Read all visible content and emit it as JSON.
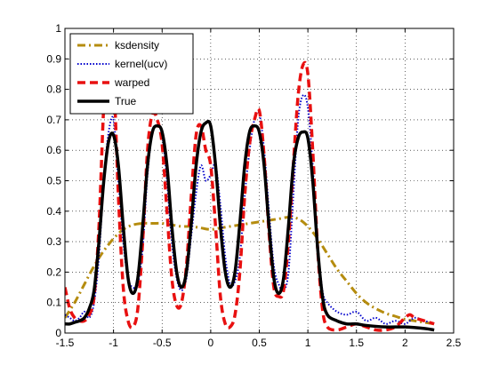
{
  "chart_data": {
    "type": "line",
    "title": "",
    "xlabel": "",
    "ylabel": "",
    "xlim": [
      -1.5,
      2.5
    ],
    "ylim": [
      0,
      1
    ],
    "xticks": [
      -1.5,
      -1,
      -0.5,
      0,
      0.5,
      1,
      1.5,
      2,
      2.5
    ],
    "yticks": [
      0,
      0.1,
      0.2,
      0.3,
      0.4,
      0.5,
      0.6,
      0.7,
      0.8,
      0.9,
      1
    ],
    "xtick_labels": [
      "-1.5",
      "-1",
      "-0.5",
      "0",
      "0.5",
      "1",
      "1.5",
      "2",
      "2.5"
    ],
    "ytick_labels": [
      "0",
      "0.1",
      "0.2",
      "0.3",
      "0.4",
      "0.5",
      "0.6",
      "0.7",
      "0.8",
      "0.9",
      "1"
    ],
    "grid": true,
    "legend_position": "top-left",
    "series": [
      {
        "name": "ksdensity",
        "color": "#b58c0f",
        "style": "dashdot",
        "x": [
          -1.5,
          -1.4,
          -1.3,
          -1.2,
          -1.1,
          -1.0,
          -0.9,
          -0.8,
          -0.7,
          -0.6,
          -0.5,
          -0.4,
          -0.3,
          -0.2,
          -0.1,
          0.0,
          0.1,
          0.2,
          0.3,
          0.4,
          0.5,
          0.6,
          0.7,
          0.8,
          0.9,
          1.0,
          1.1,
          1.2,
          1.3,
          1.4,
          1.5,
          1.6,
          1.7,
          1.8,
          1.9,
          2.0,
          2.1,
          2.2,
          2.3
        ],
        "y": [
          0.05,
          0.1,
          0.16,
          0.22,
          0.27,
          0.31,
          0.34,
          0.355,
          0.36,
          0.36,
          0.36,
          0.355,
          0.35,
          0.35,
          0.345,
          0.34,
          0.345,
          0.35,
          0.355,
          0.36,
          0.365,
          0.37,
          0.375,
          0.38,
          0.375,
          0.35,
          0.31,
          0.26,
          0.21,
          0.17,
          0.13,
          0.1,
          0.08,
          0.065,
          0.055,
          0.045,
          0.04,
          0.035,
          0.03
        ]
      },
      {
        "name": "kernel(ucv)",
        "color": "#0000cc",
        "style": "dotted",
        "x": [
          -1.5,
          -1.45,
          -1.4,
          -1.35,
          -1.3,
          -1.25,
          -1.2,
          -1.15,
          -1.1,
          -1.05,
          -1.0,
          -0.95,
          -0.9,
          -0.85,
          -0.8,
          -0.75,
          -0.7,
          -0.65,
          -0.6,
          -0.55,
          -0.5,
          -0.45,
          -0.4,
          -0.35,
          -0.3,
          -0.25,
          -0.2,
          -0.15,
          -0.1,
          -0.05,
          0.0,
          0.05,
          0.1,
          0.15,
          0.2,
          0.25,
          0.3,
          0.35,
          0.4,
          0.45,
          0.5,
          0.55,
          0.6,
          0.65,
          0.7,
          0.75,
          0.8,
          0.85,
          0.9,
          0.95,
          1.0,
          1.05,
          1.1,
          1.15,
          1.2,
          1.3,
          1.4,
          1.5,
          1.6,
          1.7,
          1.8,
          1.9,
          2.0,
          2.1,
          2.2,
          2.3
        ],
        "y": [
          0.06,
          0.05,
          0.04,
          0.05,
          0.07,
          0.05,
          0.1,
          0.25,
          0.5,
          0.66,
          0.7,
          0.5,
          0.3,
          0.18,
          0.15,
          0.16,
          0.28,
          0.52,
          0.66,
          0.68,
          0.65,
          0.5,
          0.3,
          0.18,
          0.14,
          0.18,
          0.32,
          0.46,
          0.55,
          0.5,
          0.52,
          0.55,
          0.42,
          0.25,
          0.16,
          0.17,
          0.25,
          0.45,
          0.6,
          0.7,
          0.72,
          0.6,
          0.4,
          0.22,
          0.16,
          0.14,
          0.2,
          0.45,
          0.7,
          0.78,
          0.74,
          0.55,
          0.3,
          0.14,
          0.1,
          0.07,
          0.06,
          0.07,
          0.04,
          0.05,
          0.03,
          0.04,
          0.03,
          0.05,
          0.04,
          0.03
        ]
      },
      {
        "name": "warped",
        "color": "#e81010",
        "style": "dashed",
        "x": [
          -1.5,
          -1.45,
          -1.4,
          -1.35,
          -1.3,
          -1.25,
          -1.2,
          -1.15,
          -1.1,
          -1.05,
          -1.0,
          -0.95,
          -0.9,
          -0.85,
          -0.8,
          -0.75,
          -0.7,
          -0.65,
          -0.6,
          -0.55,
          -0.5,
          -0.45,
          -0.4,
          -0.35,
          -0.3,
          -0.25,
          -0.2,
          -0.15,
          -0.1,
          -0.05,
          0.0,
          0.05,
          0.1,
          0.15,
          0.2,
          0.25,
          0.3,
          0.35,
          0.4,
          0.45,
          0.5,
          0.55,
          0.6,
          0.65,
          0.7,
          0.75,
          0.8,
          0.85,
          0.9,
          0.95,
          1.0,
          1.05,
          1.1,
          1.15,
          1.2,
          1.3,
          1.4,
          1.5,
          1.6,
          1.7,
          1.8,
          1.9,
          2.0,
          2.05,
          2.1,
          2.2,
          2.3
        ],
        "y": [
          0.15,
          0.08,
          0.05,
          0.04,
          0.04,
          0.06,
          0.12,
          0.35,
          0.75,
          0.98,
          0.85,
          0.45,
          0.15,
          0.04,
          0.02,
          0.08,
          0.3,
          0.6,
          0.72,
          0.7,
          0.62,
          0.4,
          0.18,
          0.09,
          0.1,
          0.22,
          0.45,
          0.65,
          0.68,
          0.6,
          0.55,
          0.35,
          0.12,
          0.03,
          0.02,
          0.06,
          0.2,
          0.45,
          0.62,
          0.7,
          0.73,
          0.58,
          0.33,
          0.15,
          0.12,
          0.14,
          0.3,
          0.55,
          0.78,
          0.88,
          0.85,
          0.6,
          0.28,
          0.08,
          0.02,
          0.01,
          0.02,
          0.03,
          0.02,
          0.01,
          0.01,
          0.02,
          0.05,
          0.06,
          0.05,
          0.04,
          0.03
        ]
      },
      {
        "name": "True",
        "color": "#000000",
        "style": "solid",
        "x": [
          -1.5,
          -1.45,
          -1.4,
          -1.35,
          -1.3,
          -1.25,
          -1.2,
          -1.15,
          -1.1,
          -1.05,
          -1.0,
          -0.95,
          -0.9,
          -0.85,
          -0.8,
          -0.75,
          -0.7,
          -0.65,
          -0.6,
          -0.55,
          -0.5,
          -0.45,
          -0.4,
          -0.35,
          -0.3,
          -0.25,
          -0.2,
          -0.15,
          -0.1,
          -0.05,
          0.0,
          0.05,
          0.1,
          0.15,
          0.2,
          0.25,
          0.3,
          0.35,
          0.4,
          0.45,
          0.5,
          0.55,
          0.6,
          0.65,
          0.7,
          0.75,
          0.8,
          0.85,
          0.9,
          0.95,
          1.0,
          1.05,
          1.1,
          1.15,
          1.2,
          1.3,
          1.4,
          1.5,
          1.6,
          1.8,
          2.0,
          2.2,
          2.3
        ],
        "y": [
          0.03,
          0.03,
          0.035,
          0.04,
          0.05,
          0.08,
          0.14,
          0.3,
          0.5,
          0.63,
          0.65,
          0.55,
          0.35,
          0.18,
          0.13,
          0.18,
          0.35,
          0.55,
          0.66,
          0.68,
          0.66,
          0.55,
          0.35,
          0.2,
          0.15,
          0.2,
          0.36,
          0.55,
          0.66,
          0.69,
          0.68,
          0.55,
          0.35,
          0.2,
          0.15,
          0.2,
          0.36,
          0.55,
          0.66,
          0.68,
          0.66,
          0.55,
          0.35,
          0.18,
          0.13,
          0.18,
          0.35,
          0.55,
          0.64,
          0.66,
          0.64,
          0.5,
          0.28,
          0.12,
          0.06,
          0.04,
          0.03,
          0.03,
          0.025,
          0.02,
          0.02,
          0.015,
          0.01
        ]
      }
    ]
  }
}
